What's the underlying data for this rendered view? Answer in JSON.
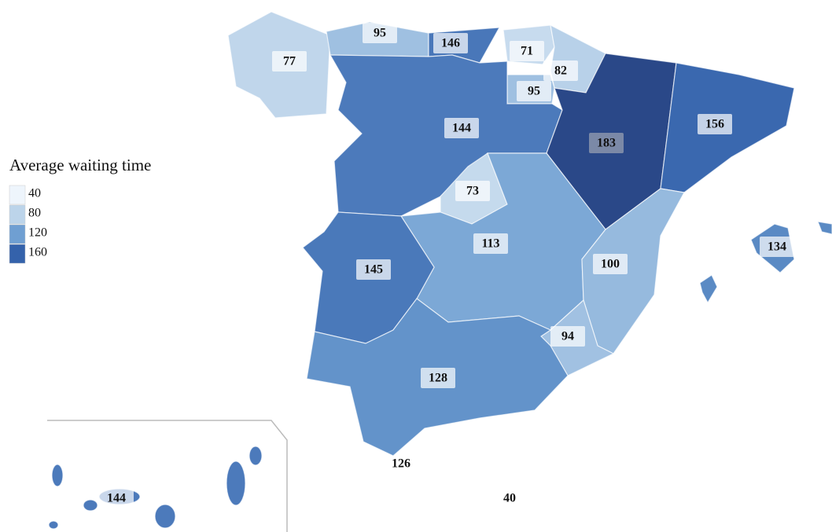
{
  "legend": {
    "title": "Average waiting time",
    "ticks": [
      40,
      80,
      120,
      160
    ],
    "colors": [
      "#eef5fc",
      "#bcd4ea",
      "#6f9fd2",
      "#3462ab"
    ]
  },
  "regions": [
    {
      "value": 77
    },
    {
      "value": 95
    },
    {
      "value": 146
    },
    {
      "value": 71
    },
    {
      "value": 82
    },
    {
      "value": 95
    },
    {
      "value": 144
    },
    {
      "value": 183
    },
    {
      "value": 156
    },
    {
      "value": 73
    },
    {
      "value": 113
    },
    {
      "value": 100
    },
    {
      "value": 94
    },
    {
      "value": 145
    },
    {
      "value": 128
    },
    {
      "value": 134
    },
    {
      "value": 144
    },
    {
      "value": 126
    },
    {
      "value": 40
    }
  ]
}
